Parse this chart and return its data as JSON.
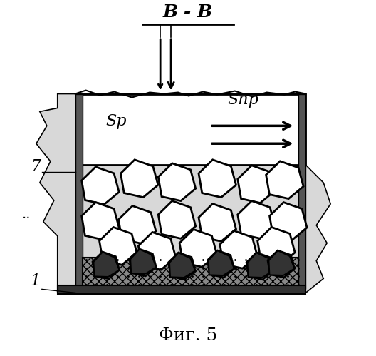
{
  "title": "Фиг. 5",
  "section_label": "B - B",
  "label_7": "7",
  "label_1": "1",
  "label_Sp": "Sp",
  "label_Snp": "Snp",
  "bg_color": "#ffffff",
  "line_color": "#000000",
  "fig_width": 5.28,
  "fig_height": 4.99,
  "dpi": 100
}
